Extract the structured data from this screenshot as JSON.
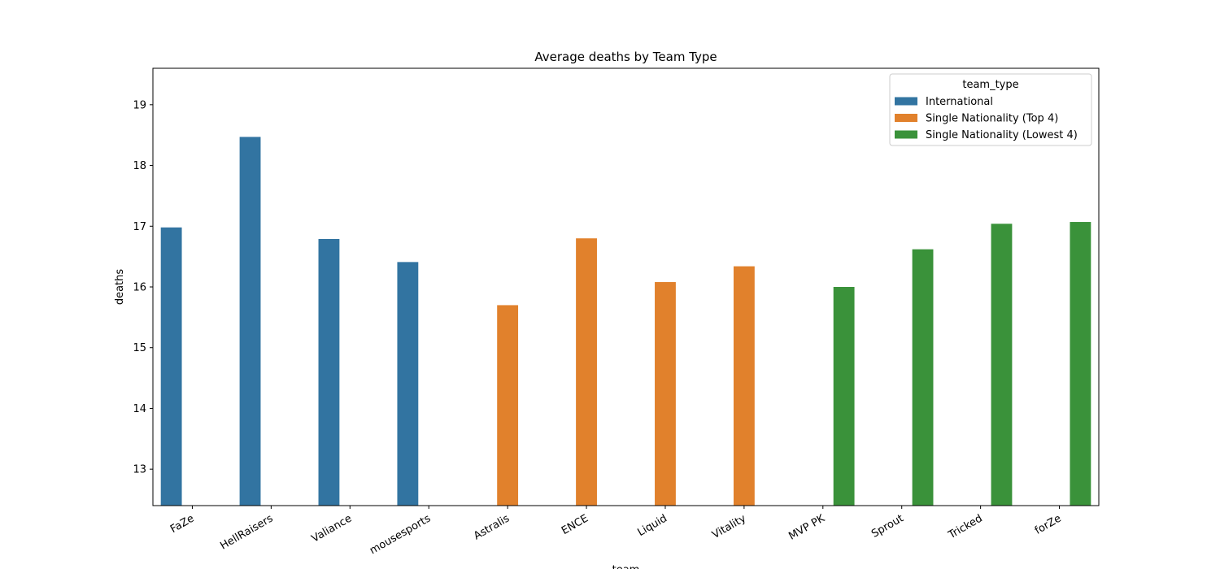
{
  "chart_data": {
    "type": "bar",
    "title": "Average deaths by Team Type",
    "xlabel": "team",
    "ylabel": "deaths",
    "ylim": [
      12.4,
      19.6
    ],
    "yticks": [
      13,
      14,
      15,
      16,
      17,
      18,
      19
    ],
    "categories": [
      "FaZe",
      "HellRaisers",
      "Valiance",
      "mousesports",
      "Astralis",
      "ENCE",
      "Liquid",
      "Vitality",
      "MVP PK",
      "Sprout",
      "Tricked",
      "forZe"
    ],
    "legend_title": "team_type",
    "legend_position": "top-right",
    "grid": false,
    "series": [
      {
        "name": "International",
        "color": "#3274a1",
        "values": [
          16.98,
          18.47,
          16.79,
          16.41,
          null,
          null,
          null,
          null,
          null,
          null,
          null,
          null
        ]
      },
      {
        "name": "Single Nationality (Top 4)",
        "color": "#e1812c",
        "values": [
          null,
          null,
          null,
          null,
          15.7,
          16.8,
          16.08,
          16.34,
          null,
          null,
          null,
          null
        ]
      },
      {
        "name": "Single Nationality (Lowest 4)",
        "color": "#3a923a",
        "values": [
          null,
          null,
          null,
          null,
          null,
          null,
          null,
          null,
          16.0,
          16.62,
          17.04,
          17.07
        ]
      }
    ]
  }
}
